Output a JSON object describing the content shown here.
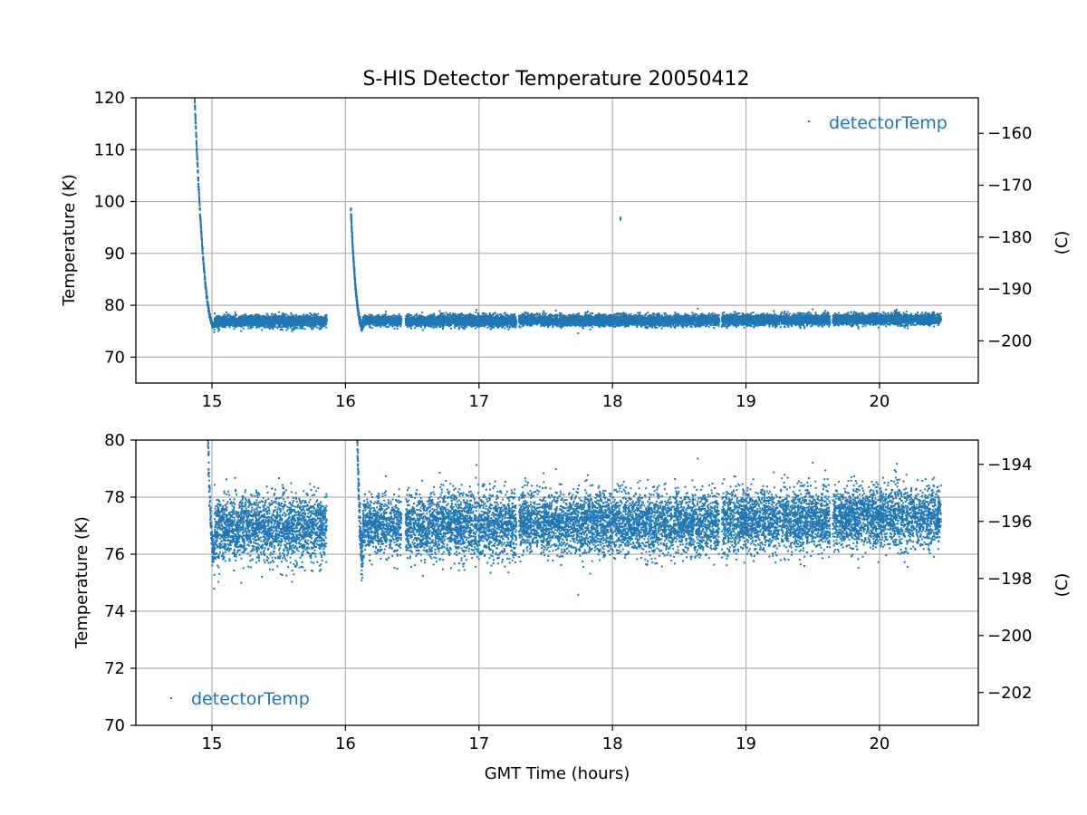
{
  "chart_data": {
    "type": "scatter",
    "title": "S-HIS Detector Temperature 20050412",
    "colors": {
      "series": "#1f77b4",
      "grid": "#b0b0b0"
    },
    "series_name": "detectorTemp",
    "xlabel": "GMT Time (hours)",
    "x_ticks": [
      15,
      16,
      17,
      18,
      19,
      20
    ],
    "xlim": [
      14.43,
      20.74
    ],
    "grid": true,
    "panels": [
      {
        "ylabel": "Temperature (K)",
        "ylabel_right": "(C)",
        "ylim": [
          65,
          120
        ],
        "y_ticks": [
          70,
          80,
          90,
          100,
          110,
          120
        ],
        "y_ticks_right": [
          -200,
          -190,
          -180,
          -170,
          -160
        ],
        "legend_loc": "upper right",
        "legend_label": "detectorTemp"
      },
      {
        "ylabel": "Temperature (K)",
        "ylabel_right": "(C)",
        "ylim": [
          70,
          80
        ],
        "y_ticks": [
          70,
          72,
          74,
          76,
          78,
          80
        ],
        "y_ticks_right": [
          -202,
          -200,
          -198,
          -196,
          -194
        ],
        "legend_loc": "lower left",
        "legend_label": "detectorTemp"
      }
    ],
    "segments": [
      {
        "kind": "cooldown",
        "start": 14.87,
        "end": 15.02,
        "start_value": 120.0,
        "end_value": 76.0
      },
      {
        "kind": "stable",
        "start": 15.02,
        "end": 15.86,
        "mean": 76.9,
        "spread": 0.75
      },
      {
        "kind": "cooldown",
        "start": 16.04,
        "end": 16.13,
        "start_value": 98.5,
        "end_value": 76.0
      },
      {
        "kind": "stable",
        "start": 16.13,
        "end": 16.42,
        "mean": 77.0,
        "spread": 0.65
      },
      {
        "kind": "stable",
        "start": 16.45,
        "end": 17.28,
        "mean": 77.0,
        "spread": 0.75
      },
      {
        "kind": "stable",
        "start": 17.3,
        "end": 18.8,
        "mean": 77.1,
        "spread": 0.7
      },
      {
        "kind": "stable",
        "start": 18.82,
        "end": 19.63,
        "mean": 77.2,
        "spread": 0.7
      },
      {
        "kind": "stable",
        "start": 19.65,
        "end": 20.46,
        "mean": 77.3,
        "spread": 0.7
      }
    ],
    "outliers": [
      {
        "x": 18.06,
        "y": 96.7
      },
      {
        "x": 18.06,
        "y": 96.9
      },
      {
        "x": 18.06,
        "y": 96.5
      }
    ]
  }
}
